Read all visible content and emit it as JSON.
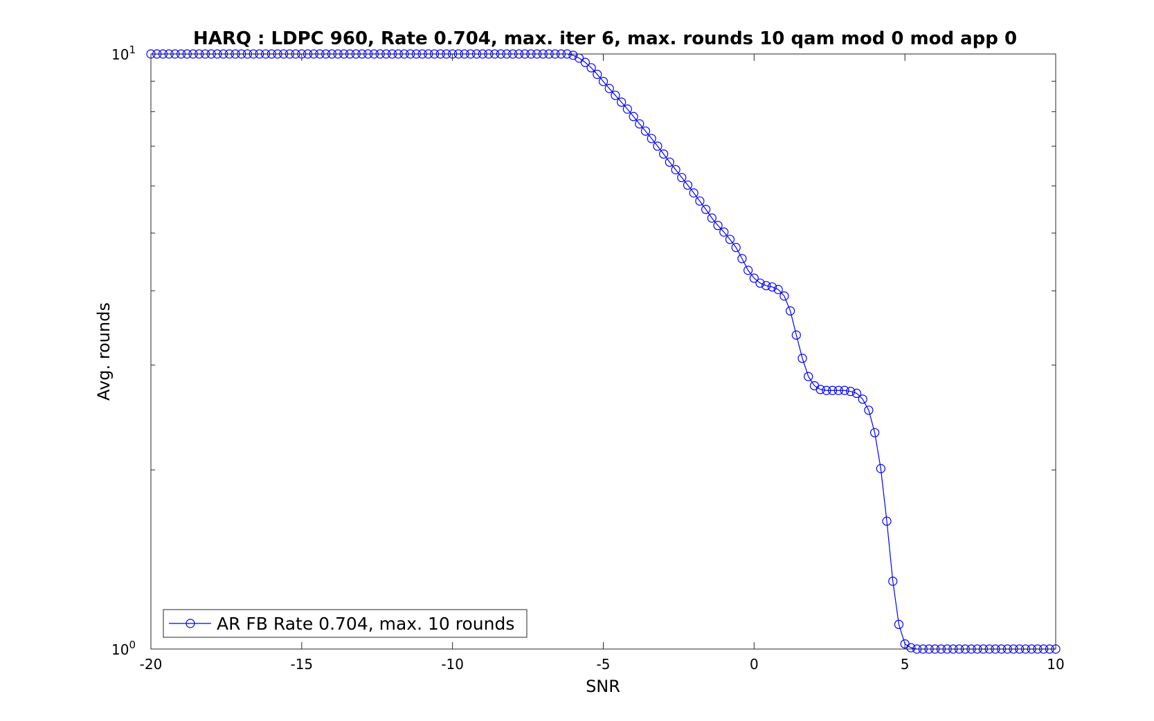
{
  "chart_data": {
    "type": "line",
    "title": "HARQ : LDPC 960, Rate 0.704, max. iter 6, max. rounds 10 qam mod 0 mod app 0",
    "xlabel": "SNR",
    "ylabel": "Avg. rounds",
    "xlim": [
      -20,
      10
    ],
    "ylim": [
      1,
      10
    ],
    "yscale": "log",
    "grid": false,
    "legend_position": "bottom-left",
    "x_ticks": [
      "-20",
      "-15",
      "-10",
      "-5",
      "0",
      "5",
      "10"
    ],
    "y_ticks": [
      {
        "base": "10",
        "exp": "0"
      },
      {
        "base": "10",
        "exp": "1"
      }
    ],
    "series": [
      {
        "name": "AR FB Rate 0.704, max. 10 rounds",
        "color": "#0000ff",
        "marker": "circle",
        "x": [
          -20,
          -19.8,
          -19.6,
          -19.4,
          -19.2,
          -19,
          -18.8,
          -18.6,
          -18.4,
          -18.2,
          -18,
          -17.8,
          -17.6,
          -17.4,
          -17.2,
          -17,
          -16.8,
          -16.6,
          -16.4,
          -16.2,
          -16,
          -15.8,
          -15.6,
          -15.4,
          -15.2,
          -15,
          -14.8,
          -14.6,
          -14.4,
          -14.2,
          -14,
          -13.8,
          -13.6,
          -13.4,
          -13.2,
          -13,
          -12.8,
          -12.6,
          -12.4,
          -12.2,
          -12,
          -11.8,
          -11.6,
          -11.4,
          -11.2,
          -11,
          -10.8,
          -10.6,
          -10.4,
          -10.2,
          -10,
          -9.8,
          -9.6,
          -9.4,
          -9.2,
          -9,
          -8.8,
          -8.6,
          -8.4,
          -8.2,
          -8,
          -7.8,
          -7.6,
          -7.4,
          -7.2,
          -7,
          -6.8,
          -6.6,
          -6.4,
          -6.2,
          -6,
          -5.8,
          -5.6,
          -5.4,
          -5.2,
          -5,
          -4.8,
          -4.6,
          -4.4,
          -4.2,
          -4,
          -3.8,
          -3.6,
          -3.4,
          -3.2,
          -3,
          -2.8,
          -2.6,
          -2.4,
          -2.2,
          -2,
          -1.8,
          -1.6,
          -1.4,
          -1.2,
          -1,
          -0.8,
          -0.6,
          -0.4,
          -0.2,
          0,
          0.2,
          0.4,
          0.6,
          0.8,
          1,
          1.2,
          1.4,
          1.6,
          1.8,
          2,
          2.2,
          2.4,
          2.6,
          2.8,
          3,
          3.2,
          3.4,
          3.6,
          3.8,
          4,
          4.2,
          4.4,
          4.6,
          4.8,
          5,
          5.2,
          5.4,
          5.6,
          5.8,
          6,
          6.2,
          6.4,
          6.6,
          6.8,
          7,
          7.2,
          7.4,
          7.6,
          7.8,
          8,
          8.2,
          8.4,
          8.6,
          8.8,
          9,
          9.2,
          9.4,
          9.6,
          9.8,
          10
        ],
        "y": [
          10,
          10,
          10,
          10,
          10,
          10,
          10,
          10,
          10,
          10,
          10,
          10,
          10,
          10,
          10,
          10,
          10,
          10,
          10,
          10,
          10,
          10,
          10,
          10,
          10,
          10,
          10,
          10,
          10,
          10,
          10,
          10,
          10,
          10,
          10,
          10,
          10,
          10,
          10,
          10,
          10,
          10,
          10,
          10,
          10,
          10,
          10,
          10,
          10,
          10,
          10,
          10,
          10,
          10,
          10,
          10,
          10,
          10,
          10,
          10,
          10,
          10,
          10,
          10,
          10,
          10,
          10,
          10,
          10,
          10,
          9.95,
          9.84,
          9.68,
          9.48,
          9.24,
          8.99,
          8.75,
          8.52,
          8.3,
          8.08,
          7.85,
          7.63,
          7.42,
          7.21,
          7.0,
          6.79,
          6.58,
          6.39,
          6.2,
          6.02,
          5.84,
          5.66,
          5.48,
          5.3,
          5.15,
          5.02,
          4.88,
          4.73,
          4.53,
          4.33,
          4.2,
          4.12,
          4.08,
          4.06,
          4.02,
          3.92,
          3.7,
          3.37,
          3.08,
          2.87,
          2.77,
          2.73,
          2.72,
          2.72,
          2.72,
          2.72,
          2.71,
          2.69,
          2.63,
          2.52,
          2.31,
          2.01,
          1.64,
          1.3,
          1.1,
          1.02,
          1.005,
          1.0,
          1.0,
          1.0,
          1.0,
          1.0,
          1.0,
          1.0,
          1.0,
          1.0,
          1.0,
          1.0,
          1.0,
          1.0,
          1.0,
          1.0,
          1.0,
          1.0,
          1.0,
          1.0,
          1.0,
          1.0,
          1.0,
          1.0,
          1.0
        ]
      }
    ]
  }
}
